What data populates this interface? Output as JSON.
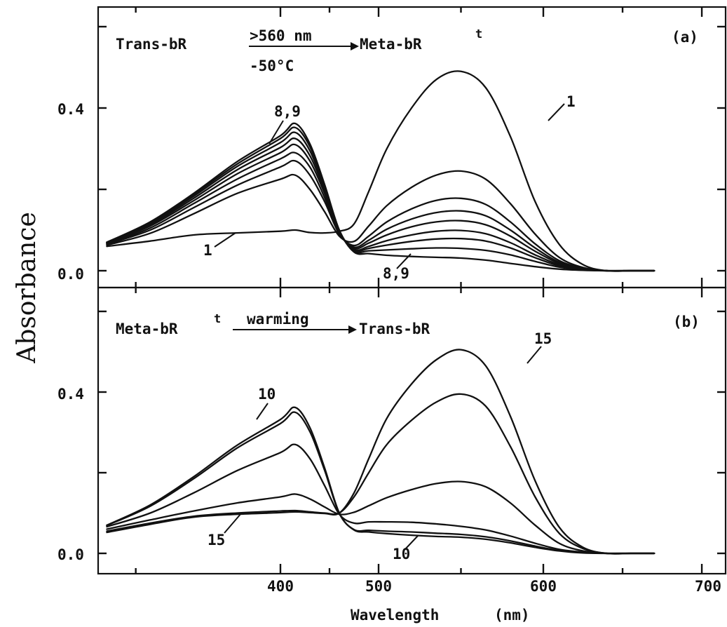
{
  "figure": {
    "ylabel": "Absorbance",
    "xlabel": "Wavelength",
    "xunit": "(nm)"
  },
  "chart_data": [
    {
      "type": "line",
      "panel_label": "(a)",
      "scheme": {
        "reactant": "Trans-bR",
        "arrow_above": ">560 nm",
        "arrow_below": "-50°C",
        "product": "Meta-bR",
        "product_superscript": "t"
      },
      "xlim": [
        337,
        715
      ],
      "ylim": [
        -0.01,
        0.63
      ],
      "x_ticks": [
        400,
        500,
        600,
        700
      ],
      "y_tick_labels": [
        "0.0",
        "0.4"
      ],
      "y_tick_values": [
        0.0,
        0.4
      ],
      "annotations": {
        "upper_left_first": "1",
        "upper_left_last": "8,9",
        "upper_right_first": "1",
        "lower_right_last": "8,9"
      },
      "series": [
        {
          "values": [
            0.06,
            0.073,
            0.088,
            0.093,
            0.097,
            0.1,
            0.094,
            0.093,
            0.097,
            0.115,
            0.195,
            0.3,
            0.4,
            0.47,
            0.49,
            0.45,
            0.33,
            0.17,
            0.065,
            0.015,
            0.0,
            0.0,
            0.0
          ]
        },
        {
          "values": [
            0.063,
            0.092,
            0.14,
            0.19,
            0.225,
            0.235,
            0.2,
            0.145,
            0.085,
            0.072,
            0.11,
            0.16,
            0.205,
            0.235,
            0.245,
            0.225,
            0.165,
            0.09,
            0.033,
            0.008,
            0.0,
            0.0,
            0.0
          ]
        },
        {
          "values": [
            0.065,
            0.1,
            0.155,
            0.21,
            0.255,
            0.27,
            0.235,
            0.17,
            0.09,
            0.062,
            0.085,
            0.12,
            0.152,
            0.173,
            0.178,
            0.163,
            0.12,
            0.066,
            0.025,
            0.006,
            0.0,
            0.0,
            0.0
          ]
        },
        {
          "values": [
            0.066,
            0.105,
            0.165,
            0.225,
            0.275,
            0.29,
            0.255,
            0.18,
            0.093,
            0.058,
            0.075,
            0.102,
            0.127,
            0.143,
            0.147,
            0.135,
            0.1,
            0.056,
            0.021,
            0.005,
            0.0,
            0.0,
            0.0
          ]
        },
        {
          "values": [
            0.067,
            0.11,
            0.172,
            0.238,
            0.29,
            0.31,
            0.27,
            0.19,
            0.095,
            0.055,
            0.068,
            0.088,
            0.108,
            0.12,
            0.123,
            0.113,
            0.085,
            0.048,
            0.018,
            0.004,
            0.0,
            0.0,
            0.0
          ]
        },
        {
          "values": [
            0.068,
            0.113,
            0.178,
            0.248,
            0.303,
            0.325,
            0.283,
            0.197,
            0.097,
            0.052,
            0.06,
            0.074,
            0.088,
            0.097,
            0.099,
            0.091,
            0.069,
            0.039,
            0.015,
            0.004,
            0.0,
            0.0,
            0.0
          ]
        },
        {
          "values": [
            0.069,
            0.116,
            0.183,
            0.256,
            0.315,
            0.34,
            0.295,
            0.203,
            0.098,
            0.05,
            0.055,
            0.063,
            0.072,
            0.078,
            0.079,
            0.073,
            0.056,
            0.032,
            0.012,
            0.003,
            0.0,
            0.0,
            0.0
          ]
        },
        {
          "values": [
            0.07,
            0.118,
            0.187,
            0.262,
            0.325,
            0.352,
            0.305,
            0.208,
            0.099,
            0.048,
            0.049,
            0.051,
            0.054,
            0.056,
            0.055,
            0.05,
            0.039,
            0.023,
            0.009,
            0.002,
            0.0,
            0.0,
            0.0
          ]
        },
        {
          "values": [
            0.07,
            0.12,
            0.19,
            0.268,
            0.332,
            0.362,
            0.312,
            0.212,
            0.1,
            0.046,
            0.042,
            0.038,
            0.035,
            0.033,
            0.031,
            0.026,
            0.018,
            0.01,
            0.004,
            0.001,
            0.0,
            0.0,
            0.0
          ]
        }
      ]
    },
    {
      "type": "line",
      "panel_label": "(b)",
      "scheme": {
        "reactant": "Meta-bR",
        "reactant_superscript": "t",
        "arrow_above": "warming",
        "product": "Trans-bR"
      },
      "xlim": [
        337,
        715
      ],
      "ylim": [
        -0.01,
        0.63
      ],
      "x_ticks": [
        400,
        500,
        600,
        700
      ],
      "x_tick_labels": [
        "400",
        "500",
        "600",
        "700"
      ],
      "y_tick_labels": [
        "0.0",
        "0.4"
      ],
      "y_tick_values": [
        0.0,
        0.4
      ],
      "annotations": {
        "upper_left_first": "10",
        "lower_left_last": "15",
        "upper_right_last": "15",
        "lower_right_first": "10"
      },
      "series": [
        {
          "values": [
            0.07,
            0.12,
            0.19,
            0.268,
            0.332,
            0.362,
            0.312,
            0.212,
            0.1,
            0.058,
            0.053,
            0.049,
            0.045,
            0.042,
            0.04,
            0.035,
            0.026,
            0.015,
            0.006,
            0.001,
            0.0,
            0.0,
            0.0
          ]
        },
        {
          "values": [
            0.069,
            0.117,
            0.185,
            0.261,
            0.322,
            0.35,
            0.302,
            0.206,
            0.099,
            0.059,
            0.057,
            0.055,
            0.053,
            0.05,
            0.047,
            0.041,
            0.031,
            0.018,
            0.007,
            0.002,
            0.0,
            0.0,
            0.0
          ]
        },
        {
          "values": [
            0.066,
            0.1,
            0.15,
            0.205,
            0.25,
            0.27,
            0.235,
            0.168,
            0.097,
            0.075,
            0.078,
            0.078,
            0.077,
            0.073,
            0.067,
            0.058,
            0.043,
            0.025,
            0.01,
            0.003,
            0.0,
            0.0,
            0.0
          ]
        },
        {
          "values": [
            0.06,
            0.083,
            0.105,
            0.125,
            0.14,
            0.147,
            0.135,
            0.115,
            0.097,
            0.102,
            0.118,
            0.138,
            0.158,
            0.173,
            0.178,
            0.165,
            0.125,
            0.07,
            0.025,
            0.006,
            0.0,
            0.0,
            0.0
          ]
        },
        {
          "values": [
            0.055,
            0.075,
            0.092,
            0.1,
            0.105,
            0.106,
            0.103,
            0.1,
            0.1,
            0.14,
            0.2,
            0.27,
            0.33,
            0.375,
            0.395,
            0.365,
            0.265,
            0.14,
            0.05,
            0.012,
            0.0,
            0.0,
            0.0
          ]
        },
        {
          "values": [
            0.052,
            0.072,
            0.09,
            0.097,
            0.101,
            0.103,
            0.101,
            0.099,
            0.1,
            0.15,
            0.235,
            0.335,
            0.42,
            0.48,
            0.505,
            0.465,
            0.34,
            0.18,
            0.065,
            0.015,
            0.0,
            0.0,
            0.0
          ]
        }
      ]
    }
  ]
}
